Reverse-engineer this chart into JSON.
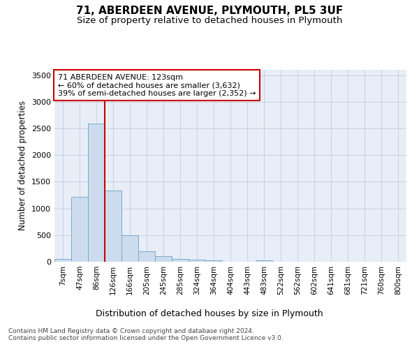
{
  "title1": "71, ABERDEEN AVENUE, PLYMOUTH, PL5 3UF",
  "title2": "Size of property relative to detached houses in Plymouth",
  "xlabel": "Distribution of detached houses by size in Plymouth",
  "ylabel": "Number of detached properties",
  "categories": [
    "7sqm",
    "47sqm",
    "86sqm",
    "126sqm",
    "166sqm",
    "205sqm",
    "245sqm",
    "285sqm",
    "324sqm",
    "364sqm",
    "404sqm",
    "443sqm",
    "483sqm",
    "522sqm",
    "562sqm",
    "602sqm",
    "641sqm",
    "681sqm",
    "721sqm",
    "760sqm",
    "800sqm"
  ],
  "bar_values": [
    50,
    1220,
    2590,
    1340,
    500,
    195,
    110,
    50,
    40,
    25,
    0,
    0,
    30,
    0,
    0,
    0,
    0,
    0,
    0,
    0,
    0
  ],
  "bar_color": "#ccdcee",
  "bar_edge_color": "#7aaac8",
  "grid_color": "#c8d4e4",
  "background_color": "#e8eef8",
  "vline_color": "#cc0000",
  "vline_pos": 2.5,
  "annotation_text": "71 ABERDEEN AVENUE: 123sqm\n← 60% of detached houses are smaller (3,632)\n39% of semi-detached houses are larger (2,352) →",
  "annotation_box_color": "#cc0000",
  "ylim": [
    0,
    3600
  ],
  "yticks": [
    0,
    500,
    1000,
    1500,
    2000,
    2500,
    3000,
    3500
  ],
  "footer1": "Contains HM Land Registry data © Crown copyright and database right 2024.",
  "footer2": "Contains public sector information licensed under the Open Government Licence v3.0."
}
